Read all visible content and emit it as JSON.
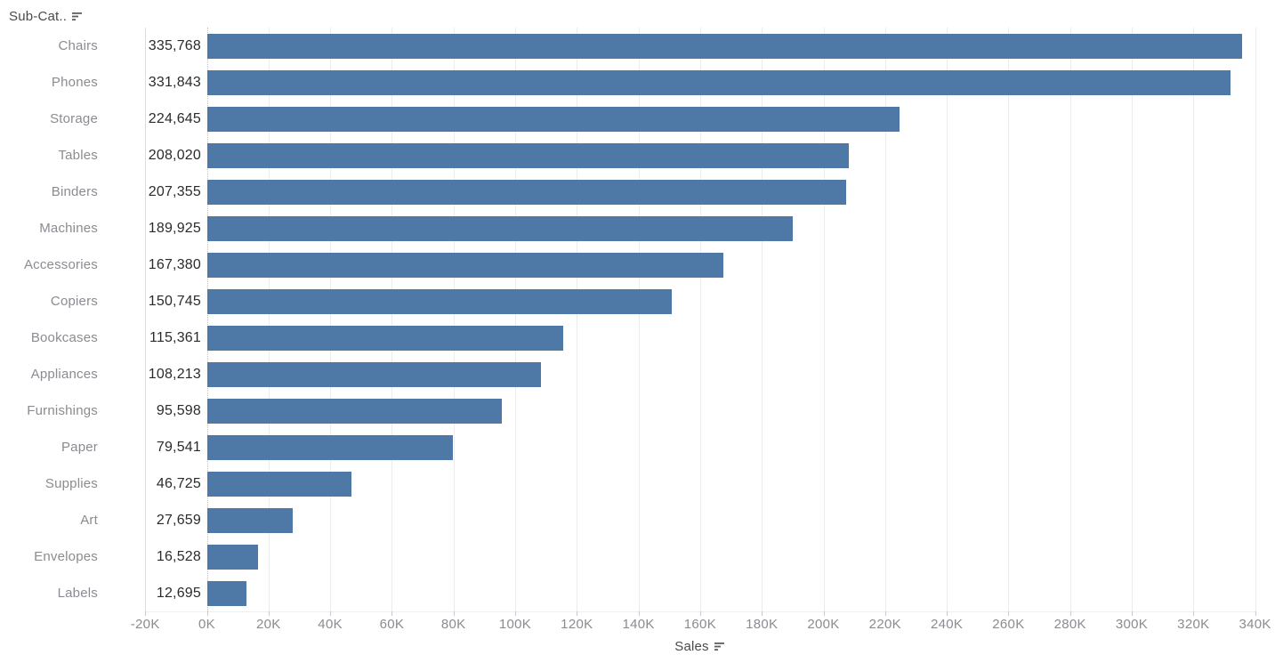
{
  "header": {
    "label": "Sub-Cat..",
    "sort_icon": "sort-descending-icon"
  },
  "axis": {
    "title": "Sales",
    "sort_icon": "sort-descending-icon",
    "ticks": [
      {
        "label": "-20K",
        "value": -20000
      },
      {
        "label": "0K",
        "value": 0
      },
      {
        "label": "20K",
        "value": 20000
      },
      {
        "label": "40K",
        "value": 40000
      },
      {
        "label": "60K",
        "value": 60000
      },
      {
        "label": "80K",
        "value": 80000
      },
      {
        "label": "100K",
        "value": 100000
      },
      {
        "label": "120K",
        "value": 120000
      },
      {
        "label": "140K",
        "value": 140000
      },
      {
        "label": "160K",
        "value": 160000
      },
      {
        "label": "180K",
        "value": 180000
      },
      {
        "label": "200K",
        "value": 200000
      },
      {
        "label": "220K",
        "value": 220000
      },
      {
        "label": "240K",
        "value": 240000
      },
      {
        "label": "260K",
        "value": 260000
      },
      {
        "label": "280K",
        "value": 280000
      },
      {
        "label": "300K",
        "value": 300000
      },
      {
        "label": "320K",
        "value": 320000
      },
      {
        "label": "340K",
        "value": 340000
      }
    ]
  },
  "chart_data": {
    "type": "bar",
    "orientation": "horizontal",
    "title": "",
    "xlabel": "Sales",
    "ylabel": "Sub-Cat..",
    "xlim": [
      -20000,
      340000
    ],
    "x_tick_interval": 20000,
    "grid": "vertical",
    "legend": "none",
    "sort": "descending by value",
    "bar_color": "#4e79a7",
    "categories": [
      "Chairs",
      "Phones",
      "Storage",
      "Tables",
      "Binders",
      "Machines",
      "Accessories",
      "Copiers",
      "Bookcases",
      "Appliances",
      "Furnishings",
      "Paper",
      "Supplies",
      "Art",
      "Envelopes",
      "Labels"
    ],
    "values": [
      335768,
      331843,
      224645,
      208020,
      207355,
      189925,
      167380,
      150745,
      115361,
      108213,
      95598,
      79541,
      46725,
      27659,
      16528,
      12695
    ],
    "value_labels": [
      "335,768",
      "331,843",
      "224,645",
      "208,020",
      "207,355",
      "189,925",
      "167,380",
      "150,745",
      "115,361",
      "108,213",
      "95,598",
      "79,541",
      "46,725",
      "27,659",
      "16,528",
      "12,695"
    ]
  },
  "colors": {
    "bar": "#4e79a7",
    "category_text": "#8b8b91",
    "value_text": "#2b2b2b",
    "tick_text": "#8b8b91",
    "header_text": "#4a4a4a",
    "gridline": "#ececec",
    "panel_border": "#dcdcdc",
    "zero_line": "#c3c3c3",
    "tick_mark": "#c9c9c9"
  }
}
